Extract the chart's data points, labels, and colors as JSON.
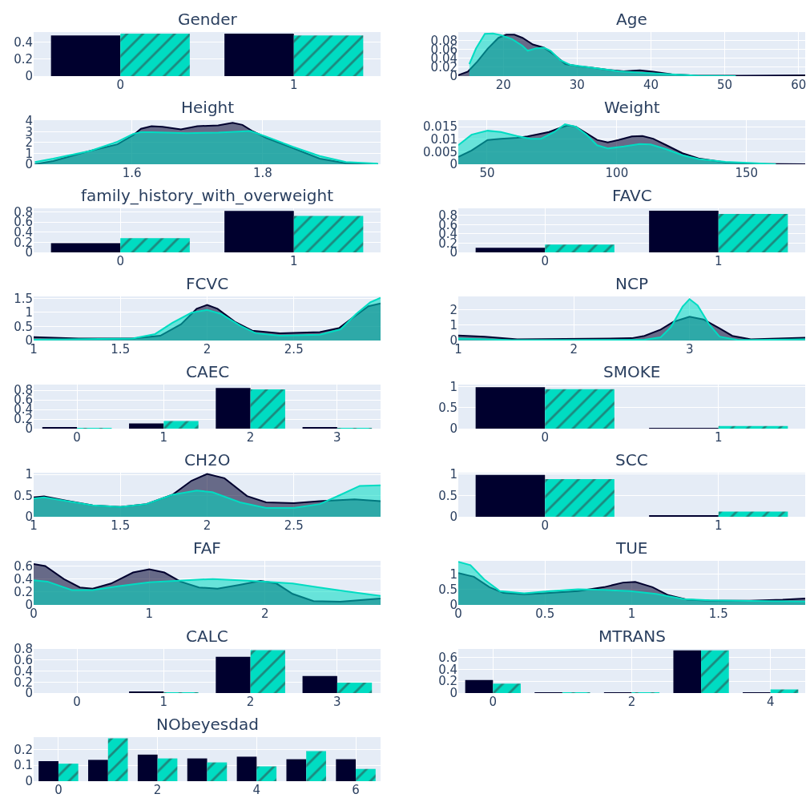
{
  "chart_data": [
    {
      "type": "bar",
      "title": "Gender",
      "x": [
        0,
        1
      ],
      "xlim": [
        -0.5,
        1.5
      ],
      "xticks": [
        0,
        1
      ],
      "ylim": [
        0,
        0.52
      ],
      "yticks": [
        0,
        0.2,
        0.4
      ],
      "grid": true,
      "series": [
        {
          "color": "#00002e",
          "values": [
            0.48,
            0.5
          ]
        },
        {
          "color": "#00dcc2",
          "values": [
            0.5,
            0.48
          ]
        }
      ]
    },
    {
      "type": "area",
      "title": "Age",
      "xlim": [
        13.9,
        60.9
      ],
      "xticks": [
        20,
        30,
        40,
        50,
        60
      ],
      "ylim": [
        0,
        0.099
      ],
      "yticks": [
        0,
        0.02,
        0.04,
        0.06,
        0.08
      ],
      "grid": true,
      "series": [
        {
          "color": "#00002e",
          "x": [
            13.9,
            15.2,
            16.5,
            17.9,
            19.35,
            20.4,
            21.5,
            22.6,
            24.0,
            25.5,
            26.9,
            28.4,
            30.2,
            32.0,
            34.2,
            36.3,
            38.5,
            40.3,
            42.8,
            46.4,
            51.8,
            60.9
          ],
          "values": [
            0.002,
            0.01,
            0.033,
            0.062,
            0.086,
            0.093,
            0.093,
            0.086,
            0.071,
            0.064,
            0.048,
            0.027,
            0.022,
            0.019,
            0.014,
            0.011,
            0.013,
            0.01,
            0.004,
            0.001,
            0.001,
            0.002
          ]
        },
        {
          "color": "#00dcc2",
          "x": [
            15.4,
            16.3,
            17.5,
            18.6,
            19.7,
            21.2,
            22.6,
            23.3,
            24.4,
            25.5,
            26.4,
            27.7,
            29.1,
            32.0,
            35.6,
            39.2,
            42.8,
            46.4,
            51.5
          ],
          "values": [
            0.027,
            0.062,
            0.095,
            0.096,
            0.092,
            0.083,
            0.068,
            0.057,
            0.062,
            0.064,
            0.057,
            0.036,
            0.025,
            0.019,
            0.011,
            0.007,
            0.004,
            0.001,
            0
          ]
        }
      ]
    },
    {
      "type": "area",
      "title": "Height",
      "xlim": [
        1.45,
        1.98
      ],
      "xticks": [
        1.6,
        1.8
      ],
      "ylim": [
        0,
        4.05
      ],
      "yticks": [
        0,
        1,
        2,
        3,
        4
      ],
      "grid": true,
      "series": [
        {
          "color": "#00002e",
          "x": [
            1.452,
            1.48,
            1.537,
            1.578,
            1.602,
            1.614,
            1.63,
            1.647,
            1.675,
            1.7,
            1.732,
            1.754,
            1.769,
            1.785,
            1.805,
            1.846,
            1.887,
            1.927,
            1.976
          ],
          "values": [
            0,
            0.29,
            1.24,
            1.83,
            2.67,
            3.26,
            3.5,
            3.45,
            3.21,
            3.5,
            3.57,
            3.81,
            3.62,
            3.02,
            2.43,
            1.48,
            0.52,
            0.1,
            0
          ]
        },
        {
          "color": "#00dcc2",
          "x": [
            1.452,
            1.48,
            1.537,
            1.578,
            1.602,
            1.614,
            1.63,
            1.684,
            1.732,
            1.781,
            1.805,
            1.846,
            1.887,
            1.927,
            1.976
          ],
          "values": [
            0.21,
            0.52,
            1.24,
            2.07,
            2.79,
            2.95,
            2.95,
            2.86,
            2.9,
            3.05,
            2.55,
            1.6,
            0.76,
            0.21,
            0.05
          ]
        }
      ]
    },
    {
      "type": "area",
      "title": "Weight",
      "xlim": [
        38.9,
        172.6
      ],
      "xticks": [
        50,
        100,
        150
      ],
      "ylim": [
        0,
        0.0176
      ],
      "yticks": [
        0,
        0.005,
        0.01,
        0.015
      ],
      "grid": true,
      "series": [
        {
          "color": "#00002e",
          "x": [
            38.9,
            44.0,
            50.2,
            55.3,
            61.5,
            65.6,
            69.8,
            73.9,
            78.0,
            81.1,
            84.2,
            88.3,
            92.4,
            96.5,
            100.6,
            105.8,
            109.9,
            114.0,
            119.1,
            125.3,
            131.5,
            141.8,
            152.0,
            172.6
          ],
          "values": [
            0.0029,
            0.0055,
            0.0097,
            0.0102,
            0.0106,
            0.0111,
            0.012,
            0.0129,
            0.0145,
            0.0155,
            0.015,
            0.0124,
            0.0097,
            0.0087,
            0.0097,
            0.0111,
            0.0113,
            0.0102,
            0.0076,
            0.0044,
            0.0023,
            0.0007,
            0.0002,
            0
          ]
        },
        {
          "color": "#00dcc2",
          "x": [
            38.9,
            44.0,
            50.2,
            55.3,
            61.5,
            66.7,
            70.8,
            75.9,
            80.0,
            84.2,
            88.3,
            92.4,
            96.5,
            102.7,
            108.8,
            113.0,
            119.1,
            125.3,
            131.5,
            141.8,
            152.0,
            161.3
          ],
          "values": [
            0.0076,
            0.0118,
            0.0134,
            0.0129,
            0.0113,
            0.0102,
            0.0102,
            0.0129,
            0.016,
            0.015,
            0.0118,
            0.0076,
            0.0063,
            0.0071,
            0.0081,
            0.0079,
            0.006,
            0.0036,
            0.0021,
            0.001,
            0.0005,
            0
          ]
        }
      ]
    },
    {
      "type": "bar",
      "title": "family_history_with_overweight",
      "x": [
        0,
        1
      ],
      "xlim": [
        -0.5,
        1.5
      ],
      "xticks": [
        0,
        1
      ],
      "ylim": [
        0,
        0.87
      ],
      "yticks": [
        0,
        0.2,
        0.4,
        0.6,
        0.8
      ],
      "grid": true,
      "series": [
        {
          "color": "#00002e",
          "values": [
            0.18,
            0.82
          ]
        },
        {
          "color": "#00dcc2",
          "values": [
            0.28,
            0.72
          ]
        }
      ]
    },
    {
      "type": "bar",
      "title": "FAVC",
      "x": [
        0,
        1
      ],
      "xlim": [
        -0.5,
        1.5
      ],
      "xticks": [
        0,
        1
      ],
      "ylim": [
        0,
        0.95
      ],
      "yticks": [
        0,
        0.2,
        0.4,
        0.6,
        0.8
      ],
      "grid": true,
      "series": [
        {
          "color": "#00002e",
          "values": [
            0.1,
            0.9
          ]
        },
        {
          "color": "#00dcc2",
          "values": [
            0.17,
            0.83
          ]
        }
      ]
    },
    {
      "type": "area",
      "title": "FCVC",
      "xlim": [
        1,
        3
      ],
      "xticks": [
        1,
        1.5,
        2,
        2.5
      ],
      "ylim": [
        0,
        1.57
      ],
      "yticks": [
        0,
        0.5,
        1,
        1.5
      ],
      "grid": true,
      "series": [
        {
          "color": "#00002e",
          "x": [
            1.0,
            1.26,
            1.57,
            1.73,
            1.85,
            1.94,
            2.0,
            2.06,
            2.16,
            2.26,
            2.42,
            2.65,
            2.76,
            2.85,
            2.93,
            3.0
          ],
          "values": [
            0.12,
            0.07,
            0.07,
            0.17,
            0.58,
            1.13,
            1.27,
            1.13,
            0.67,
            0.35,
            0.26,
            0.3,
            0.44,
            0.86,
            1.22,
            1.32
          ]
        },
        {
          "color": "#00dcc2",
          "x": [
            1.0,
            1.57,
            1.7,
            1.8,
            1.91,
            2.0,
            2.08,
            2.19,
            2.28,
            2.42,
            2.65,
            2.77,
            2.86,
            2.94,
            3.0
          ],
          "values": [
            0.03,
            0.07,
            0.23,
            0.63,
            0.99,
            1.09,
            0.95,
            0.53,
            0.26,
            0.17,
            0.21,
            0.4,
            0.95,
            1.36,
            1.52
          ]
        }
      ]
    },
    {
      "type": "area",
      "title": "NCP",
      "xlim": [
        1,
        4
      ],
      "xticks": [
        1,
        2,
        3
      ],
      "ylim": [
        0,
        2.86
      ],
      "yticks": [
        0,
        1,
        2
      ],
      "grid": true,
      "series": [
        {
          "color": "#00002e",
          "x": [
            1.0,
            1.23,
            1.51,
            1.92,
            2.5,
            2.61,
            2.75,
            2.86,
            3.0,
            3.12,
            3.26,
            3.37,
            3.53,
            4.0
          ],
          "values": [
            0.33,
            0.25,
            0.08,
            0.1,
            0.15,
            0.3,
            0.71,
            1.21,
            1.54,
            1.37,
            0.79,
            0.3,
            0.08,
            0.18
          ]
        },
        {
          "color": "#00dcc2",
          "x": [
            1.0,
            1.46,
            2.61,
            2.75,
            2.84,
            2.94,
            3.0,
            3.07,
            3.17,
            3.26,
            3.42,
            4.0
          ],
          "values": [
            0.13,
            0.03,
            0.05,
            0.21,
            0.88,
            2.2,
            2.69,
            2.28,
            1.04,
            0.25,
            0.03,
            0.08
          ]
        }
      ]
    },
    {
      "type": "bar",
      "title": "CAEC",
      "x": [
        0,
        1,
        2,
        3
      ],
      "xlim": [
        -0.5,
        3.5
      ],
      "xticks": [
        0,
        1,
        2,
        3
      ],
      "ylim": [
        0,
        0.92
      ],
      "yticks": [
        0,
        0.2,
        0.4,
        0.6,
        0.8
      ],
      "grid": true,
      "series": [
        {
          "color": "#00002e",
          "values": [
            0.02,
            0.11,
            0.85,
            0.02
          ]
        },
        {
          "color": "#00dcc2",
          "values": [
            0.01,
            0.16,
            0.82,
            0.01
          ]
        }
      ]
    },
    {
      "type": "bar",
      "title": "SMOKE",
      "x": [
        0,
        1
      ],
      "xlim": [
        -0.5,
        1.5
      ],
      "xticks": [
        0,
        1
      ],
      "ylim": [
        0,
        1.05
      ],
      "yticks": [
        0,
        0.5,
        1
      ],
      "grid": true,
      "series": [
        {
          "color": "#00002e",
          "values": [
            0.99,
            0.01
          ]
        },
        {
          "color": "#00dcc2",
          "values": [
            0.94,
            0.06
          ]
        }
      ]
    },
    {
      "type": "area",
      "title": "CH2O",
      "xlim": [
        1,
        3
      ],
      "xticks": [
        1,
        1.5,
        2,
        2.5
      ],
      "ylim": [
        0,
        1.04
      ],
      "yticks": [
        0,
        0.5,
        1
      ],
      "grid": true,
      "series": [
        {
          "color": "#00002e",
          "x": [
            1.0,
            1.06,
            1.19,
            1.34,
            1.5,
            1.65,
            1.8,
            1.91,
            2.0,
            2.1,
            2.23,
            2.34,
            2.5,
            2.65,
            2.85,
            3.0
          ],
          "values": [
            0.46,
            0.48,
            0.38,
            0.27,
            0.23,
            0.3,
            0.52,
            0.85,
            1.01,
            0.91,
            0.49,
            0.34,
            0.32,
            0.37,
            0.41,
            0.37
          ]
        },
        {
          "color": "#00dcc2",
          "x": [
            1.0,
            1.06,
            1.34,
            1.5,
            1.65,
            1.8,
            1.94,
            2.03,
            2.19,
            2.34,
            2.5,
            2.65,
            2.77,
            2.88,
            3.0
          ],
          "values": [
            0.43,
            0.46,
            0.27,
            0.23,
            0.3,
            0.52,
            0.62,
            0.58,
            0.34,
            0.21,
            0.21,
            0.3,
            0.52,
            0.73,
            0.74
          ]
        }
      ]
    },
    {
      "type": "bar",
      "title": "SCC",
      "x": [
        0,
        1
      ],
      "xlim": [
        -0.5,
        1.5
      ],
      "xticks": [
        0,
        1
      ],
      "ylim": [
        0,
        1.03
      ],
      "yticks": [
        0,
        0.5,
        1
      ],
      "grid": true,
      "series": [
        {
          "color": "#00002e",
          "values": [
            0.98,
            0.02
          ]
        },
        {
          "color": "#00dcc2",
          "values": [
            0.88,
            0.12
          ]
        }
      ]
    },
    {
      "type": "area",
      "title": "FAF",
      "xlim": [
        0,
        3
      ],
      "xticks": [
        0,
        1,
        2
      ],
      "ylim": [
        0,
        0.68
      ],
      "yticks": [
        0,
        0.2,
        0.4,
        0.6
      ],
      "grid": true,
      "series": [
        {
          "color": "#00002e",
          "x": [
            0,
            0.1,
            0.26,
            0.4,
            0.51,
            0.67,
            0.86,
            1.0,
            1.13,
            1.27,
            1.43,
            1.59,
            1.78,
            1.96,
            2.1,
            2.24,
            2.42,
            2.65,
            3.0
          ],
          "values": [
            0.63,
            0.6,
            0.4,
            0.27,
            0.25,
            0.33,
            0.5,
            0.55,
            0.5,
            0.36,
            0.27,
            0.25,
            0.31,
            0.37,
            0.33,
            0.17,
            0.06,
            0.05,
            0.1
          ]
        },
        {
          "color": "#00dcc2",
          "x": [
            0,
            0.12,
            0.33,
            0.51,
            0.74,
            1.0,
            1.32,
            1.55,
            1.78,
            2.0,
            2.24,
            2.47,
            2.7,
            3.0
          ],
          "values": [
            0.38,
            0.36,
            0.23,
            0.23,
            0.29,
            0.35,
            0.38,
            0.4,
            0.38,
            0.36,
            0.33,
            0.27,
            0.21,
            0.14
          ]
        }
      ]
    },
    {
      "type": "area",
      "title": "TUE",
      "xlim": [
        0,
        2
      ],
      "xticks": [
        0,
        0.5,
        1,
        1.5
      ],
      "ylim": [
        0,
        1.44
      ],
      "yticks": [
        0,
        0.5,
        1
      ],
      "grid": true,
      "series": [
        {
          "color": "#00002e",
          "x": [
            0,
            0.09,
            0.18,
            0.26,
            0.38,
            0.53,
            0.69,
            0.84,
            0.95,
            1.02,
            1.12,
            1.21,
            1.32,
            1.45,
            1.68,
            1.87,
            2.0
          ],
          "values": [
            1.04,
            0.92,
            0.58,
            0.39,
            0.35,
            0.39,
            0.45,
            0.58,
            0.73,
            0.75,
            0.58,
            0.32,
            0.17,
            0.14,
            0.14,
            0.17,
            0.21
          ]
        },
        {
          "color": "#00dcc2",
          "x": [
            0,
            0.07,
            0.15,
            0.24,
            0.38,
            0.53,
            0.69,
            0.84,
            0.99,
            1.14,
            1.3,
            1.45,
            1.68,
            2.0
          ],
          "values": [
            1.41,
            1.3,
            0.83,
            0.45,
            0.38,
            0.45,
            0.51,
            0.49,
            0.45,
            0.36,
            0.19,
            0.15,
            0.13,
            0.11
          ]
        }
      ]
    },
    {
      "type": "bar",
      "title": "CALC",
      "x": [
        0,
        1,
        2,
        3
      ],
      "xlim": [
        -0.5,
        3.5
      ],
      "xticks": [
        0,
        1,
        2,
        3
      ],
      "ylim": [
        0,
        0.8
      ],
      "yticks": [
        0,
        0.2,
        0.4,
        0.6,
        0.8
      ],
      "grid": true,
      "series": [
        {
          "color": "#00002e",
          "values": [
            0,
            0.03,
            0.66,
            0.31
          ]
        },
        {
          "color": "#00dcc2",
          "values": [
            0,
            0.01,
            0.78,
            0.19
          ]
        }
      ]
    },
    {
      "type": "bar",
      "title": "MTRANS",
      "x": [
        0,
        1,
        2,
        3,
        4
      ],
      "xlim": [
        -0.5,
        4.5
      ],
      "xticks": [
        0,
        2,
        4
      ],
      "ylim": [
        0,
        0.745
      ],
      "yticks": [
        0,
        0.2,
        0.4,
        0.6
      ],
      "grid": true,
      "series": [
        {
          "color": "#00002e",
          "values": [
            0.22,
            0.01,
            0.01,
            0.72,
            0.01
          ]
        },
        {
          "color": "#00dcc2",
          "values": [
            0.16,
            0.01,
            0.01,
            0.72,
            0.06
          ]
        }
      ]
    },
    {
      "type": "bar",
      "title": "NObeyesdad",
      "x": [
        0,
        1,
        2,
        3,
        4,
        5,
        6
      ],
      "xlim": [
        -0.5,
        6.5
      ],
      "xticks": [
        0,
        2,
        4,
        6
      ],
      "ylim": [
        0,
        0.277
      ],
      "yticks": [
        0,
        0.1,
        0.2
      ],
      "grid": true,
      "series": [
        {
          "color": "#00002e",
          "values": [
            0.126,
            0.134,
            0.167,
            0.143,
            0.154,
            0.138,
            0.138
          ]
        },
        {
          "color": "#00dcc2",
          "values": [
            0.11,
            0.269,
            0.143,
            0.118,
            0.093,
            0.189,
            0.077
          ]
        }
      ]
    }
  ]
}
